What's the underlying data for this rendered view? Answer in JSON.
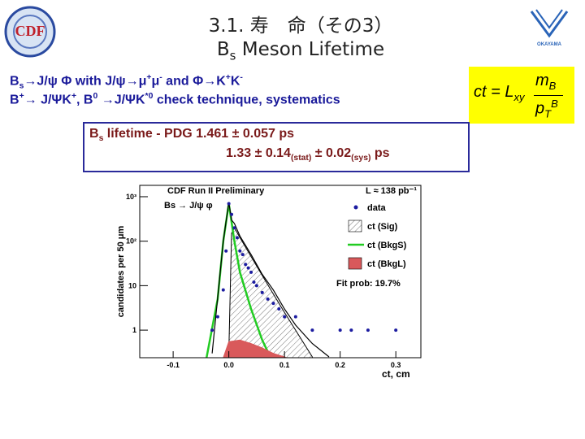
{
  "logo_left": "CDF",
  "logo_right": "OKAYAMA",
  "title": {
    "line1": "3.1. 寿　命（その3）",
    "line2": [
      "B",
      "s",
      " Meson Lifetime"
    ]
  },
  "formula": [
    "ct = L",
    "xy",
    "m",
    "B",
    "p",
    "T",
    "B"
  ],
  "body": {
    "line1": [
      "B",
      "s",
      "→J/ψ Φ  with J/ψ→μ",
      "+",
      "μ",
      "-",
      " and Φ→K",
      "+",
      "K",
      "-"
    ],
    "line2": [
      "B",
      "+",
      "→ J/ΨK",
      "+",
      ", B",
      "0",
      " →J/ΨK",
      "*0",
      " check technique, systematics"
    ]
  },
  "result_box": {
    "line1": [
      "B",
      "s",
      " lifetime - PDG 1.461 ± 0.057 ps"
    ],
    "line2": [
      "1.33 ± 0.14",
      "(stat)",
      " ± 0.02",
      "(sys)",
      " ps"
    ]
  },
  "chart_data": {
    "type": "scatter",
    "title": "CDF Run II Preliminary",
    "annotations": [
      "L ≈ 138 pb⁻¹",
      "Bs → J/ψ φ",
      "Fit prob: 19.7%"
    ],
    "x_label": "ct, cm",
    "y_label": "candidates per 50 μm",
    "xlim": [
      -0.16,
      0.345
    ],
    "ylim": [
      0.24,
      1800
    ],
    "xticks": [
      -0.1,
      {
        "value": 0,
        "label": "0.0"
      },
      0.1,
      0.2,
      0.3
    ],
    "yticks": [
      1,
      10,
      {
        "value": 100,
        "label": "10²"
      },
      {
        "value": 1000,
        "label": "10³"
      }
    ],
    "y_log": true,
    "legend": "upper right",
    "series": [
      {
        "name": "data",
        "type": "points",
        "color": "#1c1ca0",
        "x": [
          -0.03,
          -0.02,
          -0.01,
          -0.005,
          0.0,
          0.005,
          0.01,
          0.015,
          0.02,
          0.025,
          0.03,
          0.035,
          0.04,
          0.045,
          0.05,
          0.06,
          0.07,
          0.08,
          0.09,
          0.1,
          0.12,
          0.15,
          0.2,
          0.22,
          0.25,
          0.3
        ],
        "values": [
          1,
          2,
          8,
          60,
          700,
          400,
          200,
          120,
          60,
          50,
          30,
          25,
          20,
          12,
          10,
          7,
          5,
          4,
          3,
          2,
          2,
          1,
          1,
          1,
          1,
          1
        ]
      },
      {
        "name": "ct (Sig)",
        "type": "hatched-area",
        "color": "#000000",
        "x": [
          0,
          0.005,
          0.01,
          0.02,
          0.04,
          0.06,
          0.08,
          0.1,
          0.12,
          0.15
        ],
        "values": [
          0.3,
          150,
          200,
          120,
          45,
          17,
          6.5,
          2.5,
          1,
          0.25
        ]
      },
      {
        "name": "ct (BkgS)",
        "type": "line",
        "color": "#22cc22",
        "x": [
          -0.04,
          -0.02,
          -0.01,
          0,
          0.01,
          0.02,
          0.04,
          0.06,
          0.075
        ],
        "values": [
          0.24,
          5,
          100,
          700,
          100,
          20,
          3,
          0.6,
          0.24
        ]
      },
      {
        "name": "ct (BkgL)",
        "type": "area",
        "color": "#d9595b",
        "x": [
          -0.01,
          0,
          0.02,
          0.04,
          0.06,
          0.08,
          0.1,
          0.12
        ],
        "values": [
          0.24,
          0.55,
          0.6,
          0.5,
          0.4,
          0.3,
          0.25,
          0.2
        ]
      },
      {
        "type": "line",
        "color": "#000000",
        "x": [
          -0.03,
          -0.01,
          0,
          0.005,
          0.01,
          0.02,
          0.04,
          0.06,
          0.08,
          0.1,
          0.12,
          0.15,
          0.18
        ],
        "values": [
          0.3,
          100,
          750,
          300,
          250,
          130,
          50,
          18,
          8,
          3,
          1.3,
          0.5,
          0.25
        ]
      }
    ]
  }
}
